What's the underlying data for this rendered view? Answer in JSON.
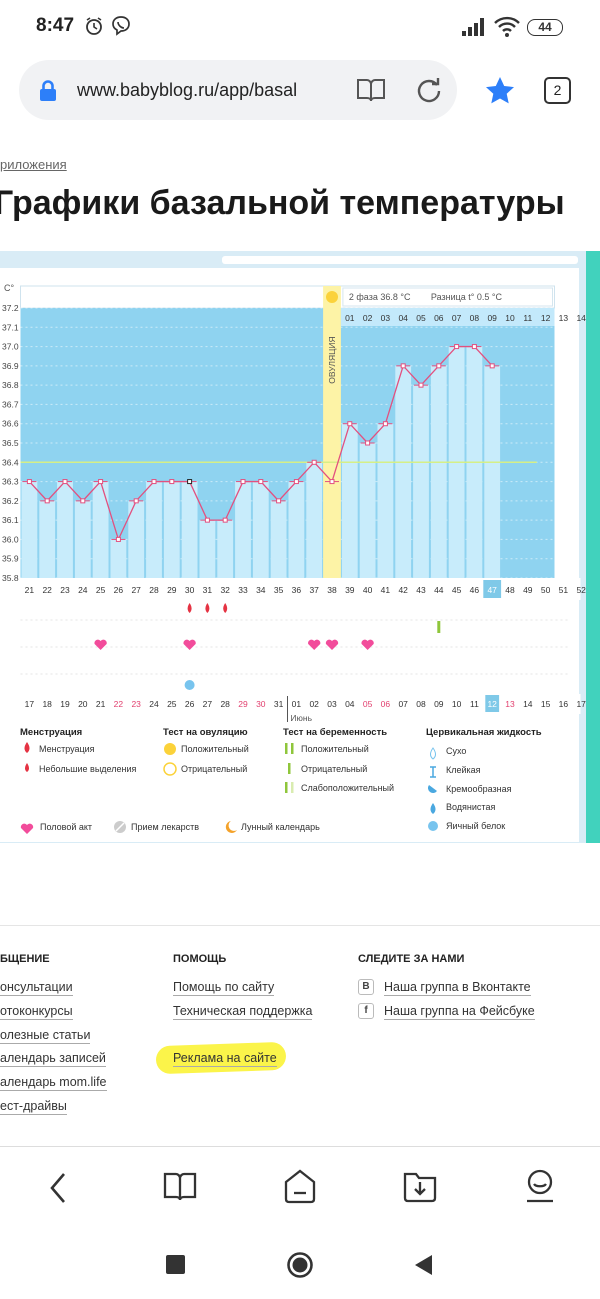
{
  "status": {
    "time": "8:47",
    "battery": "44"
  },
  "browser": {
    "url": "www.babyblog.ru/app/basal",
    "tab_count": "2"
  },
  "page": {
    "breadcrumb": "риложения",
    "title": "Графики базальной температуры"
  },
  "chart_data": {
    "type": "line",
    "title": "Графики базальной температуры",
    "ylabel": "C°",
    "ylim": [
      35.8,
      37.2
    ],
    "y_ticks": [
      "37.2",
      "37.1",
      "37.0",
      "36.9",
      "36.8",
      "36.7",
      "36.6",
      "36.5",
      "36.4",
      "36.3",
      "36.2",
      "36.1",
      "36.0",
      "35.9",
      "35.8"
    ],
    "cycle_days": [
      "21",
      "22",
      "23",
      "24",
      "25",
      "26",
      "27",
      "28",
      "29",
      "30",
      "31",
      "32",
      "33",
      "34",
      "35",
      "36",
      "37",
      "38",
      "39",
      "40",
      "41",
      "42",
      "43",
      "44",
      "45",
      "46",
      "47",
      "48",
      "49",
      "50",
      "51",
      "52"
    ],
    "dates": [
      "17",
      "18",
      "19",
      "20",
      "21",
      "22",
      "23",
      "24",
      "25",
      "26",
      "27",
      "28",
      "29",
      "30",
      "31",
      "01",
      "02",
      "03",
      "04",
      "05",
      "06",
      "07",
      "08",
      "09",
      "10",
      "11",
      "12",
      "13",
      "14",
      "15",
      "16",
      "17"
    ],
    "month_label": "Июнь",
    "temperatures": [
      36.3,
      36.2,
      36.3,
      36.2,
      36.3,
      36.0,
      36.2,
      36.3,
      36.3,
      36.3,
      36.1,
      36.1,
      36.3,
      36.3,
      36.2,
      36.3,
      36.4,
      36.3,
      36.6,
      36.5,
      36.6,
      36.9,
      36.8,
      36.9,
      37.0,
      37.0,
      36.9
    ],
    "coverline": 36.4,
    "ovulation_label": "ОВУЛЯЦИЯ",
    "ovulation_day": "38",
    "today_day": "47",
    "today_date": "12",
    "phase2_label": "2 фаза",
    "phase2_value": "36.8 °C",
    "diff_label": "Разница t°",
    "diff_value": "0.5 °C",
    "phase2_days": [
      "01",
      "02",
      "03",
      "04",
      "05",
      "06",
      "07",
      "08",
      "09",
      "10",
      "11",
      "12",
      "13",
      "14"
    ],
    "red_dates": [
      "22",
      "23",
      "29",
      "30",
      "05",
      "06",
      "13"
    ],
    "events": {
      "menstruation_days": [
        "30",
        "31",
        "32"
      ],
      "pos_test_day": "44",
      "intercourse_days": [
        "25",
        "30",
        "37",
        "38",
        "40"
      ],
      "mucus_day": "30"
    }
  },
  "legend": {
    "menstruation": {
      "title": "Менструация",
      "items": [
        "Менструация",
        "Небольшие выделения"
      ]
    },
    "ovulation": {
      "title": "Тест на овуляцию",
      "items": [
        "Положительный",
        "Отрицательный"
      ]
    },
    "pregnancy": {
      "title": "Тест на беременность",
      "items": [
        "Положительный",
        "Отрицательный",
        "Слабоположительный"
      ]
    },
    "cervical": {
      "title": "Цервикальная жидкость",
      "items": [
        "Сухо",
        "Клейкая",
        "Кремообразная",
        "Водянистая",
        "Яичный белок"
      ]
    },
    "bottom": [
      "Половой акт",
      "Прием лекарств",
      "Лунный календарь"
    ]
  },
  "footer": {
    "col1": {
      "title": "БЩЕНИЕ",
      "links": [
        "онсультации",
        "отоконкурсы",
        "олезные статьи",
        "алендарь записей",
        "алендарь mom.life",
        "ест-драйвы"
      ]
    },
    "col2": {
      "title": "ПОМОЩЬ",
      "links": [
        "Помощь по сайту",
        "Техническая поддержка",
        "Реклама на сайте"
      ]
    },
    "col3": {
      "title": "СЛЕДИТЕ ЗА НАМИ",
      "links": [
        "Наша группа в Вконтакте",
        "Наша группа на Фейсбуке"
      ],
      "icons": [
        "В",
        "f"
      ]
    }
  },
  "colors": {
    "plot_bg": "#8fd3f0",
    "bar_fill": "#c8ecfb",
    "line": "#e3507f",
    "ovulation": "#fdf3a6",
    "coverline": "#d6ef86",
    "today": "#7fc9e8",
    "teal": "#41d2bd",
    "accent_blue": "#2d7ff9"
  }
}
